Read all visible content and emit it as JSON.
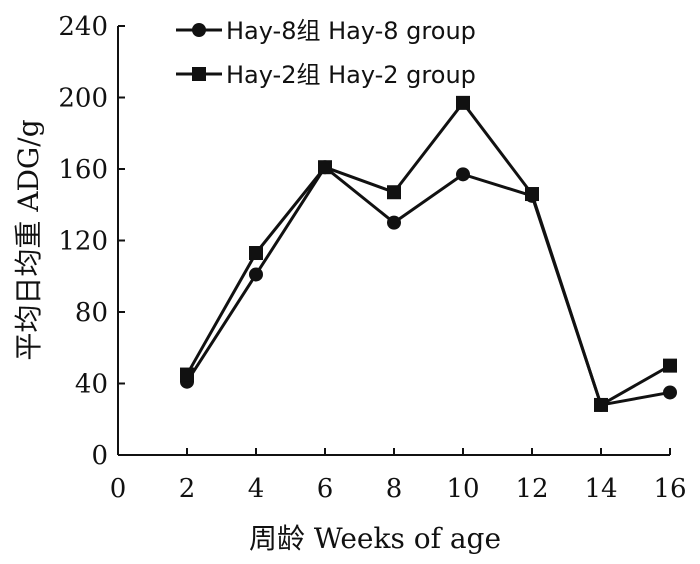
{
  "chart_data": {
    "type": "line",
    "title": "",
    "xlabel": "周龄  Weeks of age",
    "ylabel": "平均日均重  ADG/g",
    "xlim": [
      0,
      16
    ],
    "ylim": [
      0,
      240
    ],
    "xticks": [
      0,
      2,
      4,
      6,
      8,
      10,
      12,
      14,
      16
    ],
    "yticks": [
      0,
      40,
      80,
      120,
      160,
      200,
      240
    ],
    "grid": false,
    "legend_position": "top-left",
    "series": [
      {
        "name": "Hay-8组 Hay-8 group",
        "marker": "circle",
        "x": [
          2,
          4,
          6,
          8,
          10,
          12,
          14,
          16
        ],
        "y": [
          41,
          101,
          161,
          130,
          157,
          145,
          28,
          35
        ]
      },
      {
        "name": "Hay-2组 Hay-2 group",
        "marker": "square",
        "x": [
          2,
          4,
          6,
          8,
          10,
          12,
          14,
          16
        ],
        "y": [
          45,
          113,
          161,
          147,
          197,
          146,
          28,
          50
        ]
      }
    ]
  }
}
